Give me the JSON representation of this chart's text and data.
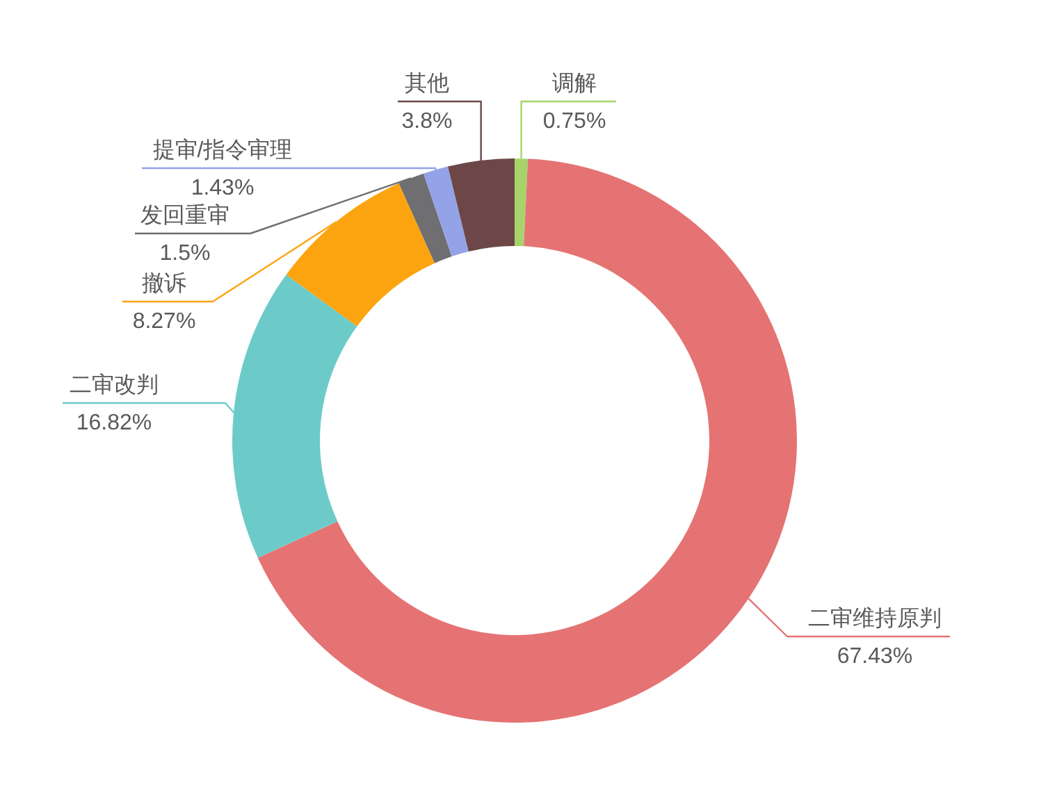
{
  "chart_data": {
    "type": "donut",
    "categories": [
      "调解",
      "二审维持原判",
      "二审改判",
      "撤诉",
      "发回重审",
      "提审/指令审理",
      "其他"
    ],
    "values": [
      0.75,
      67.43,
      16.82,
      8.27,
      1.5,
      1.43,
      3.8
    ],
    "colors": [
      "#a6d46b",
      "#e57373",
      "#6ccbc9",
      "#fca40f",
      "#6f6e70",
      "#94a3e8",
      "#6d4748"
    ],
    "value_labels": [
      "0.75%",
      "67.43%",
      "16.82%",
      "8.27%",
      "1.5%",
      "1.43%",
      "3.8%"
    ]
  }
}
